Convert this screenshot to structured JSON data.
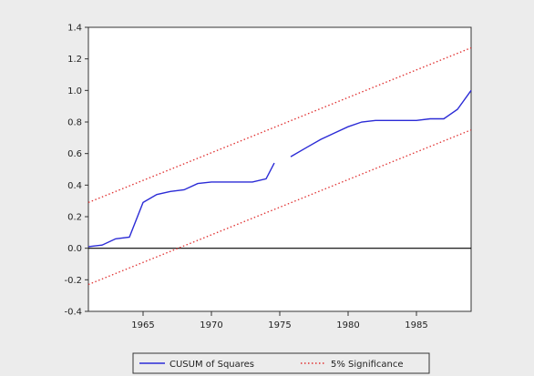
{
  "chart_data": {
    "type": "line",
    "title": "",
    "xlabel": "",
    "ylabel": "",
    "xlim": [
      1961,
      1989
    ],
    "ylim": [
      -0.4,
      1.4
    ],
    "x_ticks": [
      1965,
      1970,
      1975,
      1980,
      1985
    ],
    "x_tick_labels": [
      "1965",
      "1970",
      "1975",
      "1980",
      "1985"
    ],
    "y_ticks": [
      -0.4,
      -0.2,
      0.0,
      0.2,
      0.4,
      0.6,
      0.8,
      1.0,
      1.2,
      1.4
    ],
    "y_tick_labels": [
      "-0.4",
      "-0.2",
      "0.0",
      "0.2",
      "0.4",
      "0.6",
      "0.8",
      "1.0",
      "1.2",
      "1.4"
    ],
    "grid": false,
    "zero_line": true,
    "legend_position": "bottom",
    "series": [
      {
        "name": "CUSUM of Squares",
        "color": "#2b2bd6",
        "style": "solid",
        "segments": [
          [
            [
              1961,
              0.01
            ],
            [
              1962,
              0.02
            ],
            [
              1963,
              0.06
            ],
            [
              1964,
              0.07
            ],
            [
              1965,
              0.29
            ],
            [
              1966,
              0.34
            ],
            [
              1967,
              0.36
            ],
            [
              1968,
              0.37
            ],
            [
              1969,
              0.41
            ],
            [
              1970,
              0.42
            ],
            [
              1971,
              0.42
            ],
            [
              1972,
              0.42
            ],
            [
              1973,
              0.42
            ],
            [
              1974,
              0.44
            ],
            [
              1974.6,
              0.54
            ]
          ],
          [
            [
              1975.8,
              0.58
            ],
            [
              1977,
              0.64
            ],
            [
              1978,
              0.69
            ],
            [
              1979,
              0.73
            ],
            [
              1980,
              0.77
            ],
            [
              1981,
              0.8
            ],
            [
              1982,
              0.81
            ],
            [
              1983,
              0.81
            ],
            [
              1984,
              0.81
            ],
            [
              1985,
              0.81
            ],
            [
              1986,
              0.82
            ],
            [
              1987,
              0.82
            ],
            [
              1988,
              0.88
            ],
            [
              1989,
              1.0
            ]
          ]
        ]
      },
      {
        "name": "5% Significance",
        "color": "#e03030",
        "style": "dotted",
        "segments": [
          [
            [
              1961,
              0.29
            ],
            [
              1989,
              1.27
            ]
          ],
          [
            [
              1961,
              -0.23
            ],
            [
              1989,
              0.75
            ]
          ]
        ]
      }
    ]
  }
}
